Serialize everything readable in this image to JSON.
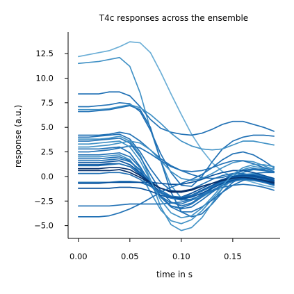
{
  "chart_data": {
    "type": "line",
    "title": "T4c responses across the ensemble",
    "xlabel": "time in s",
    "ylabel": "response (a.u.)",
    "xlim": [
      -0.01,
      0.196
    ],
    "ylim": [
      -6.3,
      14.7
    ],
    "xticks": [
      0.0,
      0.05,
      0.1,
      0.15
    ],
    "xtick_labels": [
      "0.00",
      "0.05",
      "0.10",
      "0.15"
    ],
    "yticks": [
      -5.0,
      -2.5,
      0.0,
      2.5,
      5.0,
      7.5,
      10.0,
      12.5
    ],
    "ytick_labels": [
      "−5.0",
      "−2.5",
      "0.0",
      "2.5",
      "5.0",
      "7.5",
      "10.0",
      "12.5"
    ],
    "grid": false,
    "legend": false,
    "x": [
      0.0,
      0.01,
      0.02,
      0.03,
      0.04,
      0.05,
      0.06,
      0.07,
      0.08,
      0.09,
      0.1,
      0.11,
      0.12,
      0.13,
      0.14,
      0.15,
      0.16,
      0.17,
      0.18,
      0.19
    ],
    "series": [
      {
        "color": "#6baed6",
        "values": [
          12.2,
          12.4,
          12.6,
          12.8,
          13.2,
          13.7,
          13.6,
          12.6,
          10.6,
          8.4,
          6.3,
          4.3,
          2.7,
          1.4,
          0.5,
          0.0,
          -0.3,
          -0.6,
          -0.9,
          -1.1
        ]
      },
      {
        "color": "#4292c6",
        "values": [
          11.5,
          11.6,
          11.7,
          11.9,
          12.1,
          11.2,
          8.5,
          4.8,
          1.6,
          -0.9,
          -2.2,
          -2.4,
          -2.1,
          -1.5,
          -0.8,
          -0.1,
          0.4,
          0.7,
          0.8,
          0.8
        ]
      },
      {
        "color": "#2171b5",
        "values": [
          8.4,
          8.4,
          8.4,
          8.6,
          8.6,
          8.2,
          7.1,
          5.8,
          4.9,
          4.5,
          4.3,
          4.2,
          4.4,
          4.8,
          5.3,
          5.6,
          5.6,
          5.3,
          5.0,
          4.6
        ]
      },
      {
        "color": "#2171b5",
        "values": [
          7.1,
          7.1,
          7.2,
          7.3,
          7.5,
          7.4,
          6.6,
          4.7,
          2.3,
          0.4,
          -0.9,
          -1.0,
          0.0,
          1.5,
          2.8,
          3.6,
          4.0,
          4.2,
          4.2,
          4.1
        ]
      },
      {
        "color": "#4292c6",
        "values": [
          6.8,
          6.8,
          6.8,
          6.9,
          7.1,
          7.3,
          7.0,
          6.3,
          5.4,
          4.4,
          3.6,
          3.1,
          2.8,
          2.7,
          2.8,
          3.2,
          3.6,
          3.6,
          3.4,
          3.2
        ]
      },
      {
        "color": "#2171b5",
        "values": [
          6.6,
          6.6,
          6.7,
          6.8,
          7.0,
          7.2,
          6.8,
          5.0,
          1.6,
          -1.6,
          -3.6,
          -4.1,
          -3.8,
          -2.8,
          -1.6,
          -0.6,
          0.0,
          0.3,
          0.4,
          0.4
        ]
      },
      {
        "color": "#2171b5",
        "values": [
          4.2,
          4.2,
          4.2,
          4.3,
          4.5,
          4.3,
          3.6,
          2.7,
          1.8,
          1.1,
          0.6,
          0.2,
          -0.1,
          -0.2,
          -0.1,
          0.2,
          0.6,
          0.8,
          0.7,
          0.4
        ]
      },
      {
        "color": "#2171b5",
        "values": [
          4.0,
          4.0,
          4.1,
          4.2,
          4.3,
          3.8,
          2.5,
          0.8,
          -0.6,
          -1.4,
          -1.6,
          -1.3,
          -0.8,
          -0.3,
          0.1,
          0.3,
          0.3,
          0.1,
          -0.2,
          -0.4
        ]
      },
      {
        "color": "#4292c6",
        "values": [
          3.8,
          3.8,
          3.8,
          3.9,
          4.1,
          3.6,
          2.2,
          -0.3,
          -3.1,
          -4.9,
          -5.5,
          -5.2,
          -4.2,
          -2.7,
          -1.2,
          0.0,
          0.7,
          1.0,
          0.9,
          0.7
        ]
      },
      {
        "color": "#2171b5",
        "values": [
          3.6,
          3.6,
          3.7,
          3.8,
          3.9,
          3.4,
          2.0,
          0.2,
          -1.5,
          -2.6,
          -3.0,
          -2.7,
          -2.0,
          -1.2,
          -0.5,
          0.0,
          0.2,
          0.1,
          -0.2,
          -0.4
        ]
      },
      {
        "color": "#4292c6",
        "values": [
          3.0,
          3.0,
          3.1,
          3.2,
          3.4,
          3.6,
          3.4,
          2.7,
          1.6,
          0.5,
          -0.2,
          -0.4,
          -0.2,
          0.3,
          0.9,
          1.4,
          1.6,
          1.5,
          1.1,
          0.7
        ]
      },
      {
        "color": "#2171b5",
        "values": [
          2.8,
          2.8,
          2.8,
          2.9,
          3.0,
          2.4,
          1.0,
          -0.7,
          -2.1,
          -3.0,
          -3.2,
          -2.8,
          -2.1,
          -1.2,
          -0.4,
          0.2,
          0.6,
          0.7,
          0.6,
          0.4
        ]
      },
      {
        "color": "#2171b5",
        "values": [
          2.5,
          2.5,
          2.6,
          2.7,
          2.9,
          3.1,
          2.9,
          2.3,
          1.6,
          1.0,
          0.6,
          0.5,
          0.6,
          0.9,
          1.3,
          1.6,
          1.6,
          1.3,
          0.9,
          0.5
        ]
      },
      {
        "color": "#2171b5",
        "values": [
          2.2,
          2.2,
          2.2,
          2.3,
          2.4,
          2.0,
          0.9,
          -0.6,
          -2.0,
          -3.0,
          -3.3,
          -3.1,
          -2.4,
          -1.6,
          -0.9,
          -0.3,
          0.0,
          0.0,
          -0.2,
          -0.5
        ]
      },
      {
        "color": "#4292c6",
        "values": [
          2.0,
          2.0,
          2.0,
          2.1,
          2.2,
          1.7,
          0.3,
          -1.6,
          -3.4,
          -4.5,
          -4.8,
          -4.4,
          -3.5,
          -2.3,
          -1.2,
          -0.3,
          0.2,
          0.3,
          0.1,
          -0.2
        ]
      },
      {
        "color": "#2171b5",
        "values": [
          1.8,
          1.8,
          1.8,
          1.9,
          2.0,
          1.6,
          0.6,
          -0.8,
          -2.0,
          -2.7,
          -2.8,
          -2.4,
          -1.8,
          -1.1,
          -0.5,
          0.0,
          0.2,
          0.2,
          0.0,
          -0.3
        ]
      },
      {
        "color": "#2171b5",
        "values": [
          1.6,
          1.6,
          1.6,
          1.7,
          1.8,
          1.5,
          0.7,
          -0.4,
          -1.4,
          -2.0,
          -2.2,
          -2.0,
          -1.5,
          -1.0,
          -0.5,
          -0.2,
          0.0,
          -0.1,
          -0.4,
          -0.7
        ]
      },
      {
        "color": "#08519c",
        "values": [
          1.4,
          1.4,
          1.4,
          1.5,
          1.6,
          1.2,
          0.4,
          -0.7,
          -1.6,
          -2.1,
          -2.2,
          -1.9,
          -1.4,
          -0.9,
          -0.4,
          -0.1,
          0.1,
          0.1,
          -0.1,
          -0.4
        ]
      },
      {
        "color": "#08519c",
        "values": [
          1.2,
          1.2,
          1.2,
          1.3,
          1.3,
          1.0,
          0.2,
          -0.8,
          -1.6,
          -2.1,
          -2.1,
          -1.7,
          -1.2,
          -0.7,
          -0.3,
          0.0,
          0.1,
          0.0,
          -0.2,
          -0.5
        ]
      },
      {
        "color": "#2171b5",
        "values": [
          1.1,
          1.1,
          1.1,
          1.2,
          1.3,
          1.0,
          0.3,
          -0.9,
          -2.1,
          -3.1,
          -3.6,
          -3.6,
          -3.1,
          -2.4,
          -1.6,
          -0.9,
          -0.4,
          -0.2,
          -0.3,
          -0.6
        ]
      },
      {
        "color": "#08306b",
        "values": [
          0.8,
          0.8,
          0.8,
          0.9,
          0.9,
          0.7,
          0.1,
          -0.6,
          -1.2,
          -1.6,
          -1.6,
          -1.4,
          -1.0,
          -0.7,
          -0.4,
          -0.2,
          -0.1,
          -0.2,
          -0.4,
          -0.6
        ]
      },
      {
        "color": "#08306b",
        "values": [
          0.6,
          0.6,
          0.6,
          0.6,
          0.7,
          0.4,
          -0.1,
          -0.7,
          -1.2,
          -1.5,
          -1.5,
          -1.3,
          -1.0,
          -0.7,
          -0.4,
          -0.2,
          -0.1,
          -0.2,
          -0.4,
          -0.7
        ]
      },
      {
        "color": "#2171b5",
        "values": [
          -0.6,
          -0.6,
          -0.6,
          -0.6,
          -0.5,
          -0.5,
          -0.6,
          -1.0,
          -1.6,
          -2.0,
          -2.1,
          -1.9,
          -1.5,
          -1.0,
          -0.6,
          -0.3,
          -0.2,
          -0.3,
          -0.6,
          -0.9
        ]
      },
      {
        "color": "#08519c",
        "values": [
          -0.7,
          -0.7,
          -0.7,
          -0.6,
          -0.6,
          -0.6,
          -0.6,
          -0.6,
          -0.7,
          -0.8,
          -0.8,
          -0.6,
          -0.3,
          0.1,
          0.4,
          0.6,
          0.6,
          0.4,
          0.1,
          -0.2
        ]
      },
      {
        "color": "#08519c",
        "values": [
          -1.2,
          -1.2,
          -1.2,
          -1.2,
          -1.1,
          -1.1,
          -1.2,
          -1.5,
          -1.9,
          -2.2,
          -2.3,
          -2.1,
          -1.7,
          -1.2,
          -0.7,
          -0.4,
          -0.2,
          -0.3,
          -0.5,
          -0.8
        ]
      },
      {
        "color": "#2171b5",
        "values": [
          -3.0,
          -3.0,
          -3.0,
          -3.0,
          -2.9,
          -2.8,
          -2.8,
          -2.8,
          -2.8,
          -2.7,
          -2.6,
          -2.3,
          -1.9,
          -1.5,
          -1.1,
          -0.9,
          -0.8,
          -0.9,
          -1.1,
          -1.4
        ]
      },
      {
        "color": "#2171b5",
        "values": [
          -4.1,
          -4.1,
          -4.1,
          -4.0,
          -3.7,
          -3.3,
          -2.8,
          -2.2,
          -1.6,
          -1.1,
          -0.7,
          -0.3,
          0.2,
          0.9,
          1.7,
          2.3,
          2.5,
          2.2,
          1.6,
          0.9
        ]
      },
      {
        "color": "#4292c6",
        "values": [
          3.3,
          3.3,
          3.4,
          3.5,
          3.6,
          3.0,
          1.6,
          -0.4,
          -2.4,
          -3.7,
          -4.2,
          -4.0,
          -3.2,
          -2.1,
          -0.9,
          0.2,
          0.9,
          1.2,
          1.2,
          1.0
        ]
      },
      {
        "color": "#2171b5",
        "values": [
          0.3,
          0.3,
          0.3,
          0.4,
          0.4,
          0.2,
          -0.3,
          -1.0,
          -1.7,
          -2.2,
          -2.4,
          -2.3,
          -1.9,
          -1.4,
          -0.9,
          -0.5,
          -0.3,
          -0.4,
          -0.6,
          -0.9
        ]
      }
    ]
  }
}
